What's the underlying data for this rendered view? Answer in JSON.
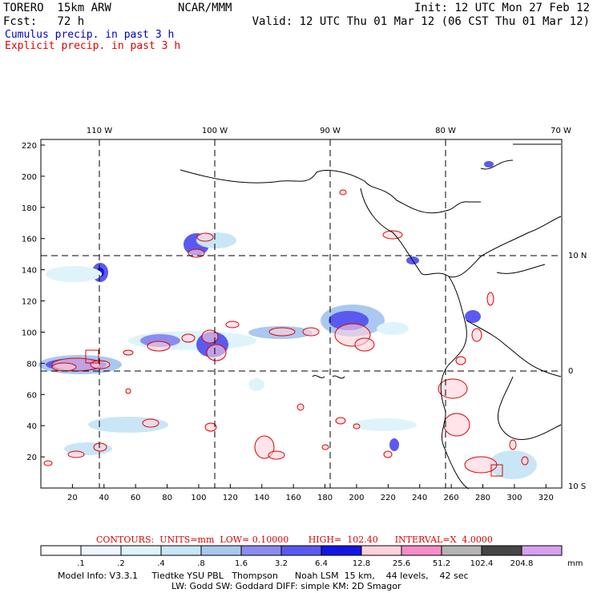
{
  "header": {
    "model": "TORERO  15km ARW",
    "center": "NCAR/MMM",
    "init": "Init: 12 UTC Mon 27 Feb 12",
    "fcst": "Fcst:   72 h",
    "valid": "Valid: 12 UTC Thu 01 Mar 12 (06 CST Thu 01 Mar 12)"
  },
  "legend_lines": {
    "cumulus": "Cumulus precip. in past 3 h",
    "explicit": "Explicit precip. in past 3 h"
  },
  "colors": {
    "cumulus_text": "#0000cc",
    "explicit_text": "#e00000",
    "contour": "#e00000",
    "grid": "#000000"
  },
  "map": {
    "lon_labels": [
      "110 W",
      "100 W",
      "90 W",
      "80 W",
      "70 W"
    ],
    "lat_labels": [
      "10 N",
      "0",
      "10 S"
    ],
    "x_ticks": [
      "20",
      "40",
      "60",
      "80",
      "100",
      "120",
      "140",
      "160",
      "180",
      "200",
      "220",
      "240",
      "260",
      "280",
      "300",
      "320"
    ],
    "y_ticks": [
      "20",
      "40",
      "60",
      "80",
      "100",
      "120",
      "140",
      "160",
      "180",
      "200",
      "220"
    ]
  },
  "colorbar": {
    "contour_note": "CONTOURS:  UNITS=mm  LOW= 0.10000       HIGH=  102.40      INTERVAL=X  4.0000",
    "labels": [
      ".1",
      ".2",
      ".4",
      ".8",
      "1.6",
      "3.2",
      "6.4",
      "12.8",
      "25.6",
      "51.2",
      "102.4",
      "204.8"
    ],
    "unit": "mm",
    "colors": [
      "#ffffff",
      "#eef7ff",
      "#dff3fa",
      "#c8e6f6",
      "#aac8f0",
      "#8c8cf0",
      "#5a5af0",
      "#1414e6",
      "#ffd2dc",
      "#f68cc8",
      "#b4b4b4",
      "#464646",
      "#d7a0f0"
    ]
  },
  "footer": {
    "line1": "Model Info: V3.3.1     Tiedtke YSU PBL   Thompson      Noah LSM  15 km,    44 levels,    42 sec",
    "line2": "LW: Godd SW: Goddard DIFF: simple KM: 2D Smagor"
  }
}
